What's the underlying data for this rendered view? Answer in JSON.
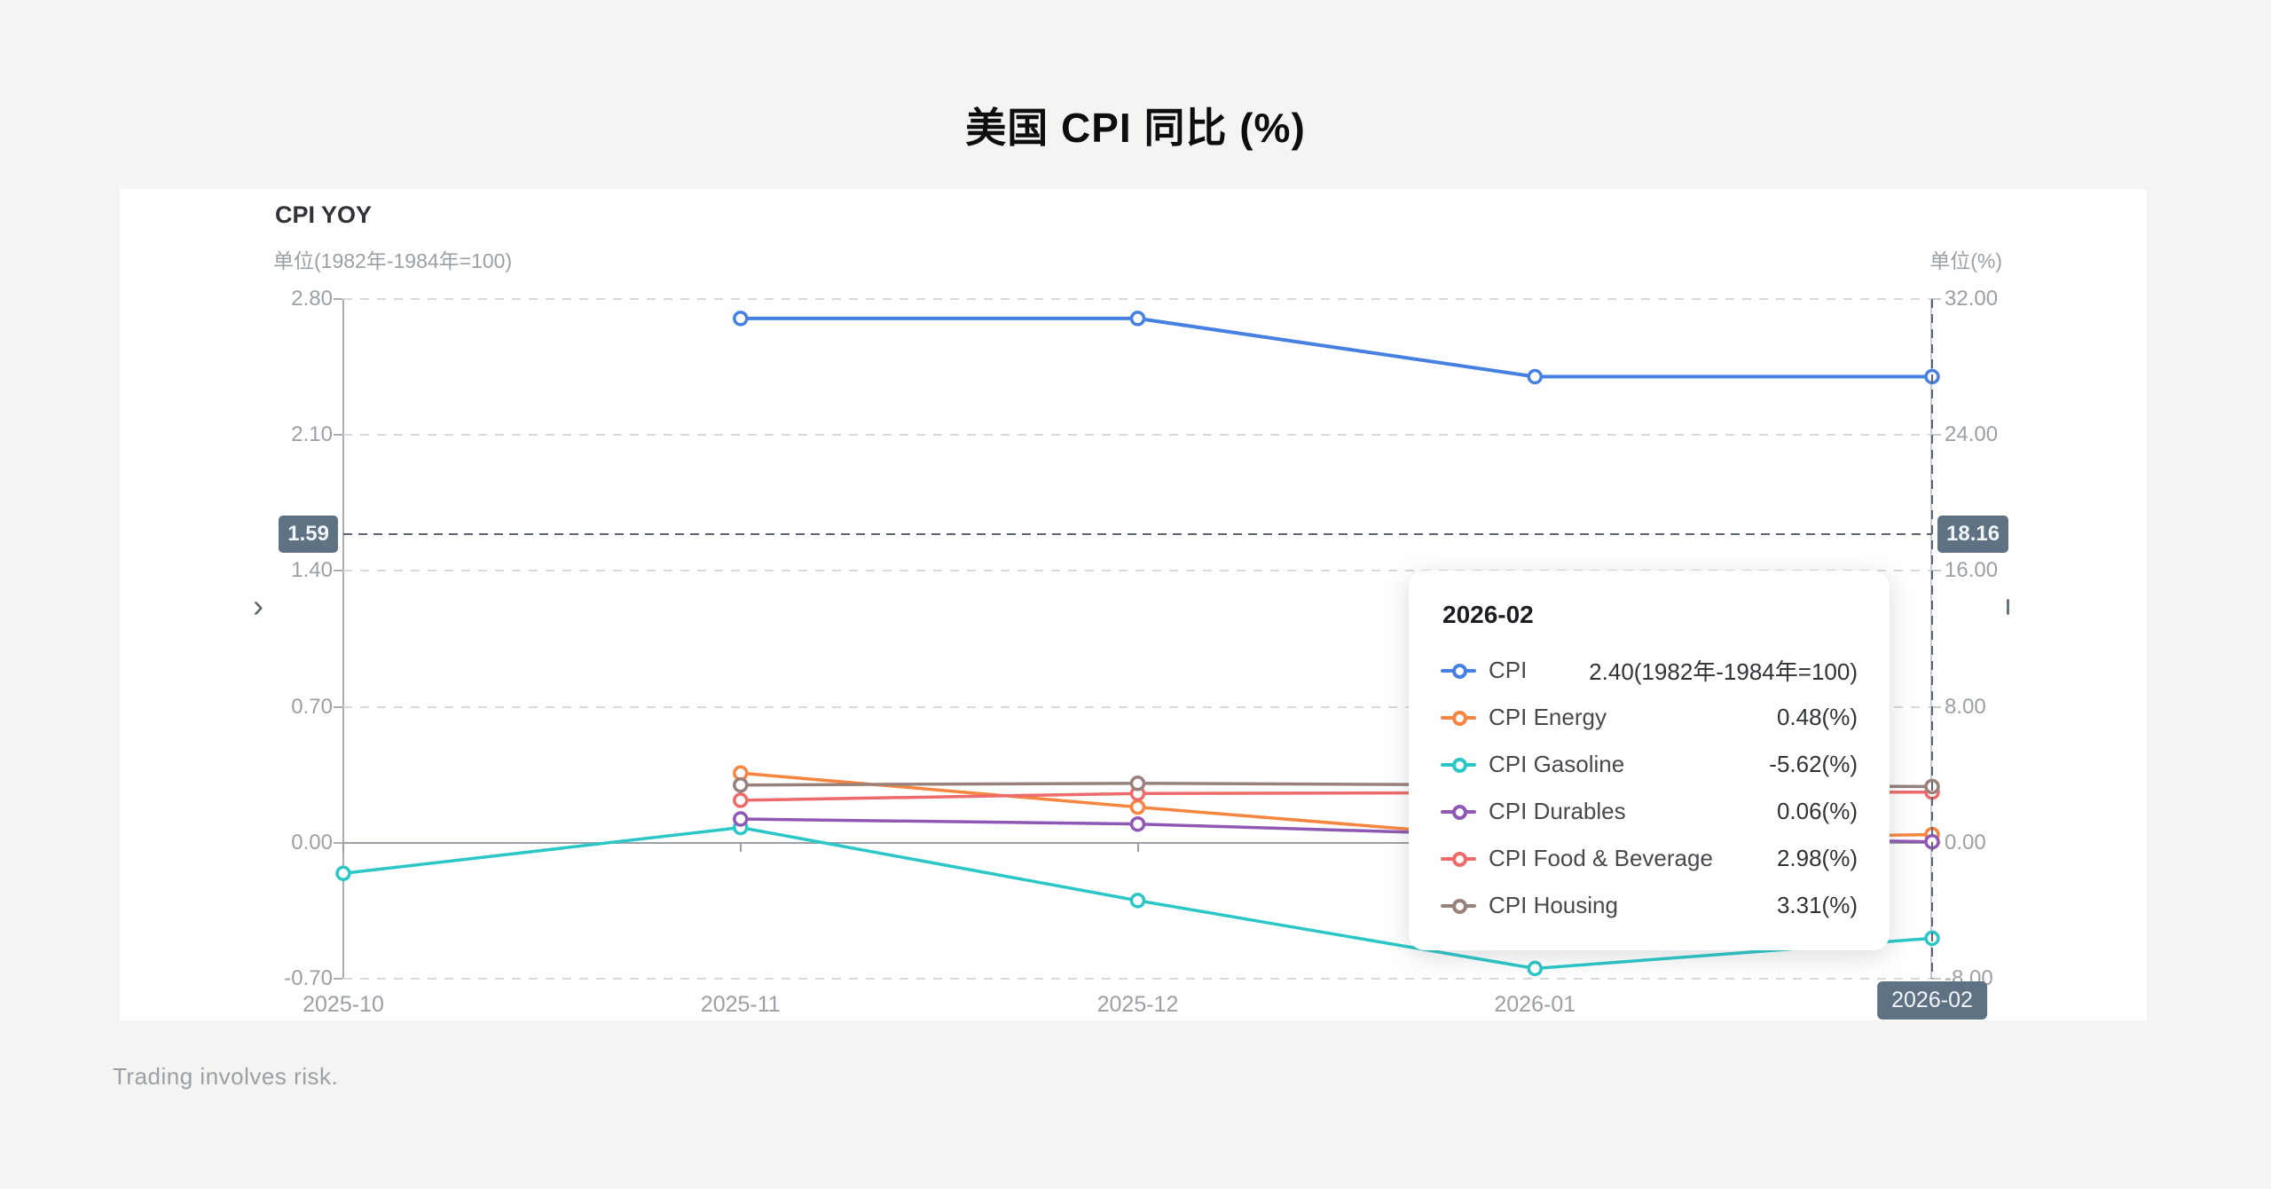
{
  "page": {
    "title": "美国 CPI 同比 (%)",
    "footer": "Trading involves risk."
  },
  "chart_data": {
    "type": "line",
    "title": "CPI YOY",
    "categories": [
      "2025-10",
      "2025-11",
      "2025-12",
      "2026-01",
      "2026-02"
    ],
    "left_axis": {
      "label": "单位(1982年-1984年=100)",
      "ticks": [
        "2.80",
        "2.10",
        "1.40",
        "0.70",
        "0.00",
        "-0.70"
      ],
      "tick_values": [
        2.8,
        2.1,
        1.4,
        0.7,
        0,
        -0.7
      ],
      "min": -0.7,
      "max": 2.8
    },
    "right_axis": {
      "label": "单位(%)",
      "ticks": [
        "32.00",
        "24.00",
        "16.00",
        "8.00",
        "0.00",
        "-8.00"
      ],
      "tick_values": [
        32,
        24,
        16,
        8,
        0,
        -8
      ],
      "min": -8,
      "max": 32
    },
    "grid": {
      "h_gridlines": "dashed",
      "zero_line": "solid"
    },
    "series": [
      {
        "name": "CPI",
        "axis": "left",
        "color": "#4680e0",
        "width": 4,
        "values": [
          null,
          2.7,
          2.7,
          2.4,
          2.4
        ]
      },
      {
        "name": "CPI Energy",
        "axis": "right",
        "color": "#f7853f",
        "width": 3.5,
        "values": [
          null,
          4.1,
          2.1,
          0.2,
          0.48
        ]
      },
      {
        "name": "CPI Gasoline",
        "axis": "right",
        "color": "#2bc7c7",
        "width": 3.5,
        "values": [
          -1.8,
          0.9,
          -3.4,
          -7.4,
          -5.62
        ]
      },
      {
        "name": "CPI Durables",
        "axis": "right",
        "color": "#8f58b5",
        "width": 3.5,
        "values": [
          null,
          1.4,
          1.1,
          0.4,
          0.06
        ]
      },
      {
        "name": "CPI Food & Beverage",
        "axis": "right",
        "color": "#ef6a6a",
        "width": 3.5,
        "values": [
          null,
          2.5,
          2.9,
          2.95,
          2.98
        ]
      },
      {
        "name": "CPI Housing",
        "axis": "right",
        "color": "#98817b",
        "width": 3.5,
        "values": [
          null,
          3.4,
          3.5,
          3.4,
          3.31
        ]
      }
    ],
    "crosshair": {
      "left_badge": "1.59",
      "right_badge": "18.16",
      "right_value": 18.16,
      "x_category": "2026-02"
    },
    "tooltip": {
      "header": "2026-02",
      "rows": [
        {
          "label": "CPI",
          "value": "2.40(1982年-1984年=100)",
          "color": "#4680e0"
        },
        {
          "label": "CPI Energy",
          "value": "0.48(%)",
          "color": "#f7853f"
        },
        {
          "label": "CPI Gasoline",
          "value": "-5.62(%)",
          "color": "#2bc7c7"
        },
        {
          "label": "CPI Durables",
          "value": "0.06(%)",
          "color": "#8f58b5"
        },
        {
          "label": "CPI Food & Beverage",
          "value": "2.98(%)",
          "color": "#ef6a6a"
        },
        {
          "label": "CPI Housing",
          "value": "3.31(%)",
          "color": "#98817b"
        }
      ]
    },
    "badge_color": "#5f7284"
  }
}
